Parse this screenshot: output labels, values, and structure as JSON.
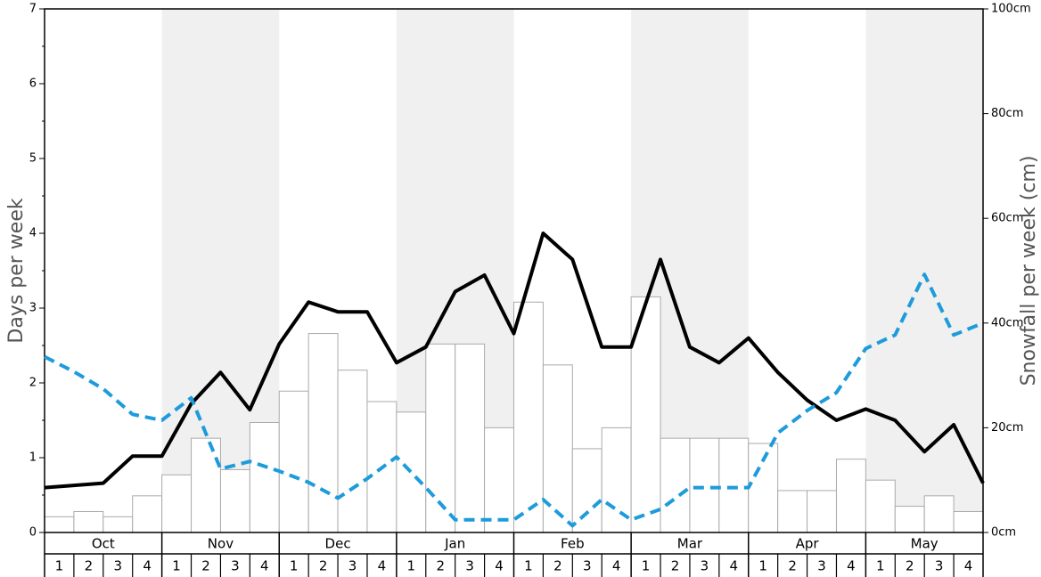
{
  "chart_data": {
    "type": "bar",
    "xlabel": "",
    "ylabel": "Days per week",
    "y2label": "Snowfall per week (cm)",
    "ylim": [
      0,
      7
    ],
    "y2lim": [
      0,
      100
    ],
    "y_ticks": [
      "0",
      "1",
      "2",
      "3",
      "4",
      "5",
      "6",
      "7"
    ],
    "y2_ticks": [
      "0cm",
      "20cm",
      "40cm",
      "60cm",
      "80cm",
      "100cm"
    ],
    "months": [
      "Oct",
      "Nov",
      "Dec",
      "Jan",
      "Feb",
      "Mar",
      "Apr",
      "May"
    ],
    "week_labels": [
      "1",
      "2",
      "3",
      "4"
    ],
    "shaded_months": [
      "Nov",
      "Jan",
      "Mar",
      "May"
    ],
    "grid": false,
    "colors": {
      "bar_fill": "#ffffff",
      "bar_stroke": "#aaaaaa",
      "line_black": "#000000",
      "line_blue": "#1e9bdb",
      "shade": "#f0f0f0"
    },
    "series": [
      {
        "type": "bar",
        "axis": "right",
        "values": [
          3,
          4,
          3,
          7,
          11,
          18,
          12,
          21,
          27,
          38,
          31,
          25,
          23,
          36,
          36,
          20,
          44,
          32,
          16,
          20,
          45,
          18,
          18,
          18,
          17,
          8,
          8,
          14,
          10,
          5,
          7,
          4
        ]
      },
      {
        "type": "line",
        "axis": "left",
        "style": "solid",
        "values": [
          0.6,
          0.63,
          0.66,
          1.02,
          1.02,
          1.72,
          2.14,
          1.64,
          2.52,
          3.08,
          2.95,
          2.95,
          2.27,
          2.48,
          3.22,
          3.44,
          2.66,
          4.0,
          3.65,
          2.48,
          2.48,
          3.65,
          2.48,
          2.27,
          2.6,
          2.14,
          1.77,
          1.5,
          1.65,
          1.5,
          1.08,
          1.44,
          0.66
        ]
      },
      {
        "type": "line",
        "axis": "left",
        "style": "dashed",
        "values": [
          2.35,
          2.15,
          1.92,
          1.58,
          1.5,
          1.8,
          0.85,
          0.95,
          0.82,
          0.67,
          0.46,
          0.72,
          1.01,
          0.6,
          0.17,
          0.17,
          0.17,
          0.44,
          0.09,
          0.44,
          0.17,
          0.31,
          0.6,
          0.6,
          0.6,
          1.33,
          1.63,
          1.87,
          2.46,
          2.64,
          3.45,
          2.64,
          2.8
        ]
      }
    ]
  }
}
